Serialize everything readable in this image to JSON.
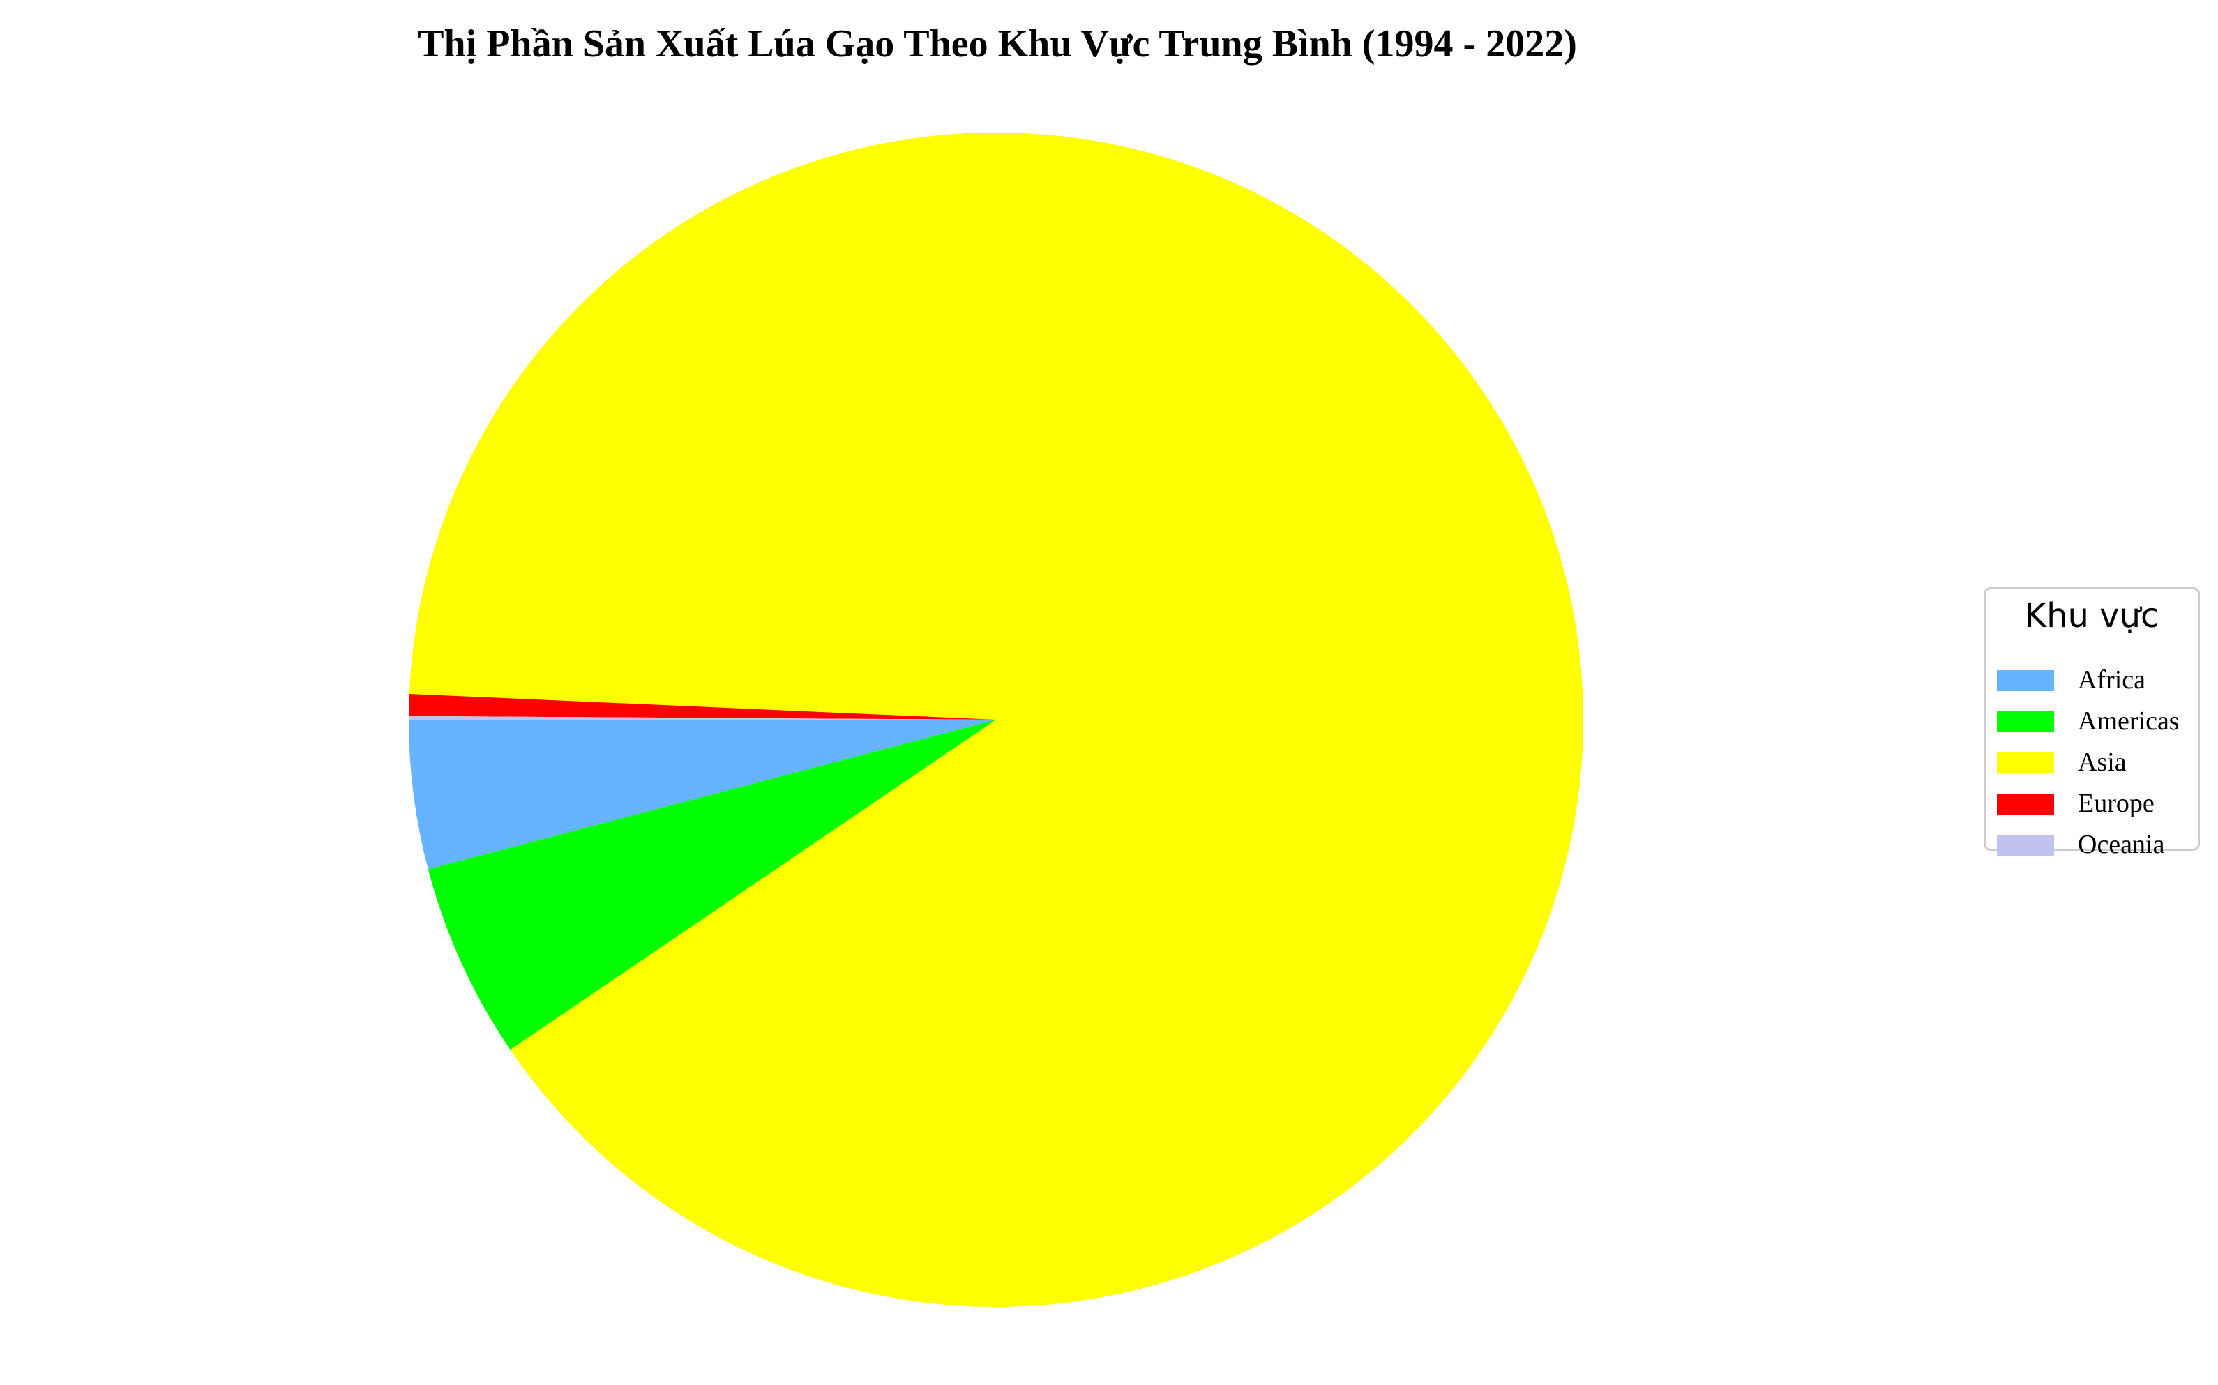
{
  "chart_data": {
    "type": "pie",
    "title": "Thị Phần Sản Xuất Lúa Gạo Theo Khu Vực Trung Bình (1994 - 2022)",
    "legend_title": "Khu vực",
    "legend_position": "right",
    "start_angle_deg": 180,
    "direction": "counterclockwise",
    "slices": [
      {
        "label": "Africa",
        "value": 4.1,
        "color": "#66b3ff"
      },
      {
        "label": "Americas",
        "value": 5.4,
        "color": "#00ff00"
      },
      {
        "label": "Asia",
        "value": 89.8,
        "color": "#ffff00"
      },
      {
        "label": "Europe",
        "value": 0.6,
        "color": "#ff0000"
      },
      {
        "label": "Oceania",
        "value": 0.1,
        "color": "#c2c2f0"
      }
    ]
  }
}
